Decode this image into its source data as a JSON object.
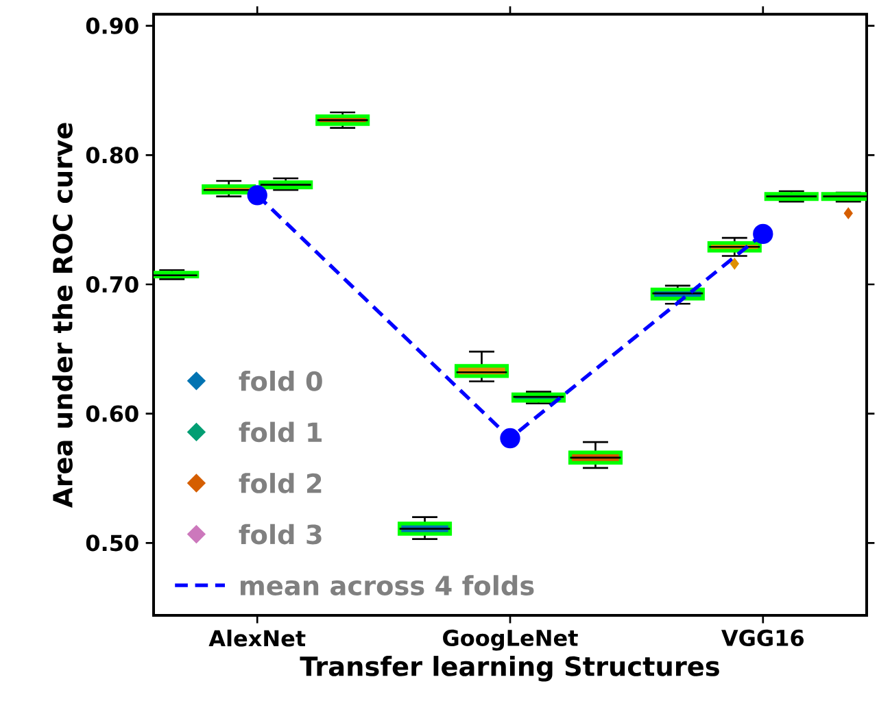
{
  "chart_data": {
    "type": "box",
    "xlabel": "Transfer learning Structures",
    "ylabel": "Area under the ROC curve",
    "categories": [
      "AlexNet",
      "GoogLeNet",
      "VGG16"
    ],
    "ylim": [
      0.444,
      0.909
    ],
    "yticks": [
      {
        "value": 0.5,
        "label": "0.50"
      },
      {
        "value": 0.6,
        "label": "0.60"
      },
      {
        "value": 0.7,
        "label": "0.70"
      },
      {
        "value": 0.8,
        "label": "0.80"
      },
      {
        "value": 0.9,
        "label": "0.90"
      }
    ],
    "legend": "bottom left",
    "grid": false,
    "series": [
      {
        "name": "fold 0",
        "color": "#0173b2",
        "boxes": [
          {
            "low": 0.704,
            "q1": 0.706,
            "median": 0.707,
            "q3": 0.709,
            "high": 0.711
          },
          {
            "low": 0.503,
            "q1": 0.507,
            "median": 0.511,
            "q3": 0.515,
            "high": 0.52
          },
          {
            "low": 0.685,
            "q1": 0.689,
            "median": 0.693,
            "q3": 0.696,
            "high": 0.699
          }
        ]
      },
      {
        "color": "#de8f05",
        "boxes": [
          {
            "low": 0.768,
            "q1": 0.771,
            "median": 0.773,
            "q3": 0.776,
            "high": 0.78
          },
          {
            "low": 0.625,
            "q1": 0.629,
            "median": 0.632,
            "q3": 0.637,
            "high": 0.648
          },
          {
            "low": 0.722,
            "q1": 0.726,
            "median": 0.729,
            "q3": 0.732,
            "high": 0.736,
            "outliers": [
              0.716
            ]
          }
        ]
      },
      {
        "name": "fold 1",
        "color": "#029e73",
        "boxes": [
          {
            "low": 0.773,
            "q1": 0.775,
            "median": 0.777,
            "q3": 0.779,
            "high": 0.782
          },
          {
            "low": 0.608,
            "q1": 0.61,
            "median": 0.613,
            "q3": 0.615,
            "high": 0.617
          },
          {
            "low": 0.764,
            "q1": 0.766,
            "median": 0.768,
            "q3": 0.77,
            "high": 0.772
          }
        ]
      },
      {
        "name": "fold 2",
        "color": "#d55e00",
        "boxes": [
          {
            "low": 0.821,
            "q1": 0.824,
            "median": 0.827,
            "q3": 0.83,
            "high": 0.833
          },
          {
            "low": 0.558,
            "q1": 0.562,
            "median": 0.566,
            "q3": 0.57,
            "high": 0.578
          },
          {
            "low": 0.764,
            "q1": 0.766,
            "median": 0.768,
            "q3": 0.77,
            "high": 0.771,
            "outliers": [
              0.755
            ]
          }
        ]
      },
      {
        "name": "fold 3",
        "color": "#cc78bc",
        "boxes": [
          null,
          null,
          null
        ]
      },
      {
        "name": "mean across 4 folds",
        "type": "line",
        "color": "#0000ff",
        "line_style": "dashed",
        "marker": "circle",
        "values": [
          0.769,
          0.581,
          0.739
        ]
      }
    ]
  }
}
